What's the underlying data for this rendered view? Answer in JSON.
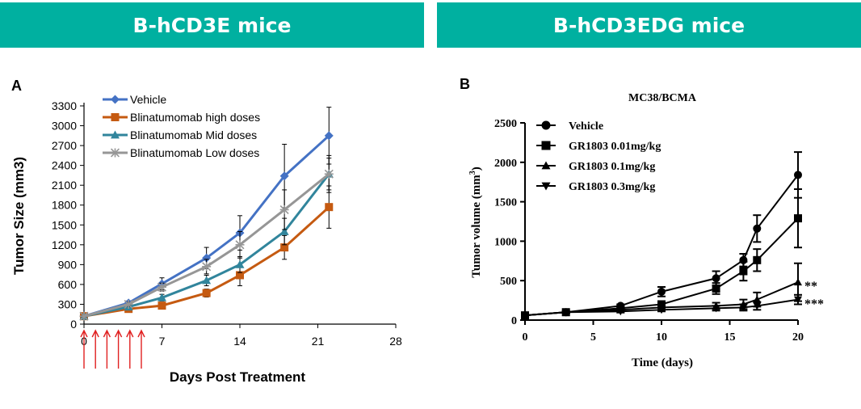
{
  "banners": {
    "left": "B-hCD3E mice",
    "right": "B-hCD3EDG mice"
  },
  "chart_data": [
    {
      "type": "line",
      "panel_label": "A",
      "title": "",
      "xlabel": "Days Post Treatment",
      "ylabel": "Tumor Size (mm3)",
      "xlim": [
        0,
        28
      ],
      "ylim": [
        0,
        3300
      ],
      "xticks": [
        0,
        7,
        14,
        21,
        28
      ],
      "yticks": [
        0,
        300,
        600,
        900,
        1200,
        1500,
        1800,
        2100,
        2400,
        2700,
        3000,
        3300
      ],
      "legend_position": "top-left",
      "grid": false,
      "dosing_days": [
        0,
        1,
        2,
        3,
        4,
        5
      ],
      "series": [
        {
          "name": "Vehicle",
          "color": "#4472c4",
          "marker": "diamond",
          "x": [
            0,
            4,
            7,
            11,
            14,
            18,
            22
          ],
          "y": [
            120,
            320,
            610,
            1000,
            1380,
            2240,
            2850
          ],
          "err": [
            20,
            30,
            90,
            160,
            260,
            480,
            430
          ]
        },
        {
          "name": "Blinatumomab high doses",
          "color": "#c55a11",
          "marker": "square",
          "x": [
            0,
            4,
            7,
            11,
            14,
            18,
            22
          ],
          "y": [
            120,
            230,
            280,
            470,
            740,
            1160,
            1770
          ],
          "err": [
            20,
            30,
            40,
            60,
            160,
            180,
            320
          ]
        },
        {
          "name": "Blinatumomab Mid doses",
          "color": "#31859c",
          "marker": "triangle",
          "x": [
            0,
            4,
            7,
            11,
            14,
            18,
            22
          ],
          "y": [
            120,
            260,
            400,
            660,
            900,
            1400,
            2270
          ],
          "err": [
            20,
            30,
            50,
            80,
            120,
            200,
            240
          ]
        },
        {
          "name": "Blinatumomab Low doses",
          "color": "#969696",
          "marker": "star",
          "x": [
            0,
            4,
            7,
            11,
            14,
            18,
            22
          ],
          "y": [
            120,
            300,
            560,
            870,
            1200,
            1730,
            2270
          ],
          "err": [
            20,
            30,
            60,
            110,
            200,
            300,
            280
          ]
        }
      ]
    },
    {
      "type": "line",
      "panel_label": "B",
      "title": "MC38/BCMA",
      "xlabel": "Time (days)",
      "ylabel": "Tumor volume (mm",
      "ylabel_sup": "3",
      "ylabel_end": ")",
      "xlim": [
        0,
        20
      ],
      "ylim": [
        0,
        2500
      ],
      "xticks": [
        0,
        5,
        10,
        15,
        20
      ],
      "yticks": [
        0,
        500,
        1000,
        1500,
        2000,
        2500
      ],
      "legend_position": "top-left",
      "grid": false,
      "significance": [
        "**",
        "***"
      ],
      "series": [
        {
          "name": "Vehicle",
          "color": "#000000",
          "marker": "circle",
          "x": [
            0,
            3,
            7,
            10,
            14,
            16,
            17,
            20
          ],
          "y": [
            60,
            100,
            180,
            360,
            530,
            760,
            1160,
            1840
          ],
          "err": [
            10,
            10,
            20,
            60,
            90,
            80,
            170,
            290
          ]
        },
        {
          "name": "GR1803 0.01mg/kg",
          "color": "#000000",
          "marker": "square",
          "x": [
            0,
            3,
            7,
            10,
            14,
            16,
            17,
            20
          ],
          "y": [
            60,
            100,
            150,
            200,
            400,
            620,
            760,
            1290
          ],
          "err": [
            10,
            10,
            20,
            40,
            70,
            120,
            140,
            370
          ]
        },
        {
          "name": "GR1803 0.1mg/kg",
          "color": "#000000",
          "marker": "triangle",
          "x": [
            0,
            3,
            7,
            10,
            14,
            16,
            17,
            20
          ],
          "y": [
            60,
            100,
            130,
            160,
            180,
            200,
            260,
            480
          ],
          "err": [
            10,
            10,
            20,
            30,
            40,
            60,
            90,
            240
          ]
        },
        {
          "name": "GR1803 0.3mg/kg",
          "color": "#000000",
          "marker": "triangle-down",
          "x": [
            0,
            3,
            7,
            10,
            14,
            16,
            17,
            20
          ],
          "y": [
            60,
            100,
            110,
            130,
            150,
            160,
            180,
            260
          ],
          "err": [
            10,
            10,
            15,
            20,
            30,
            40,
            50,
            60
          ]
        }
      ]
    }
  ]
}
